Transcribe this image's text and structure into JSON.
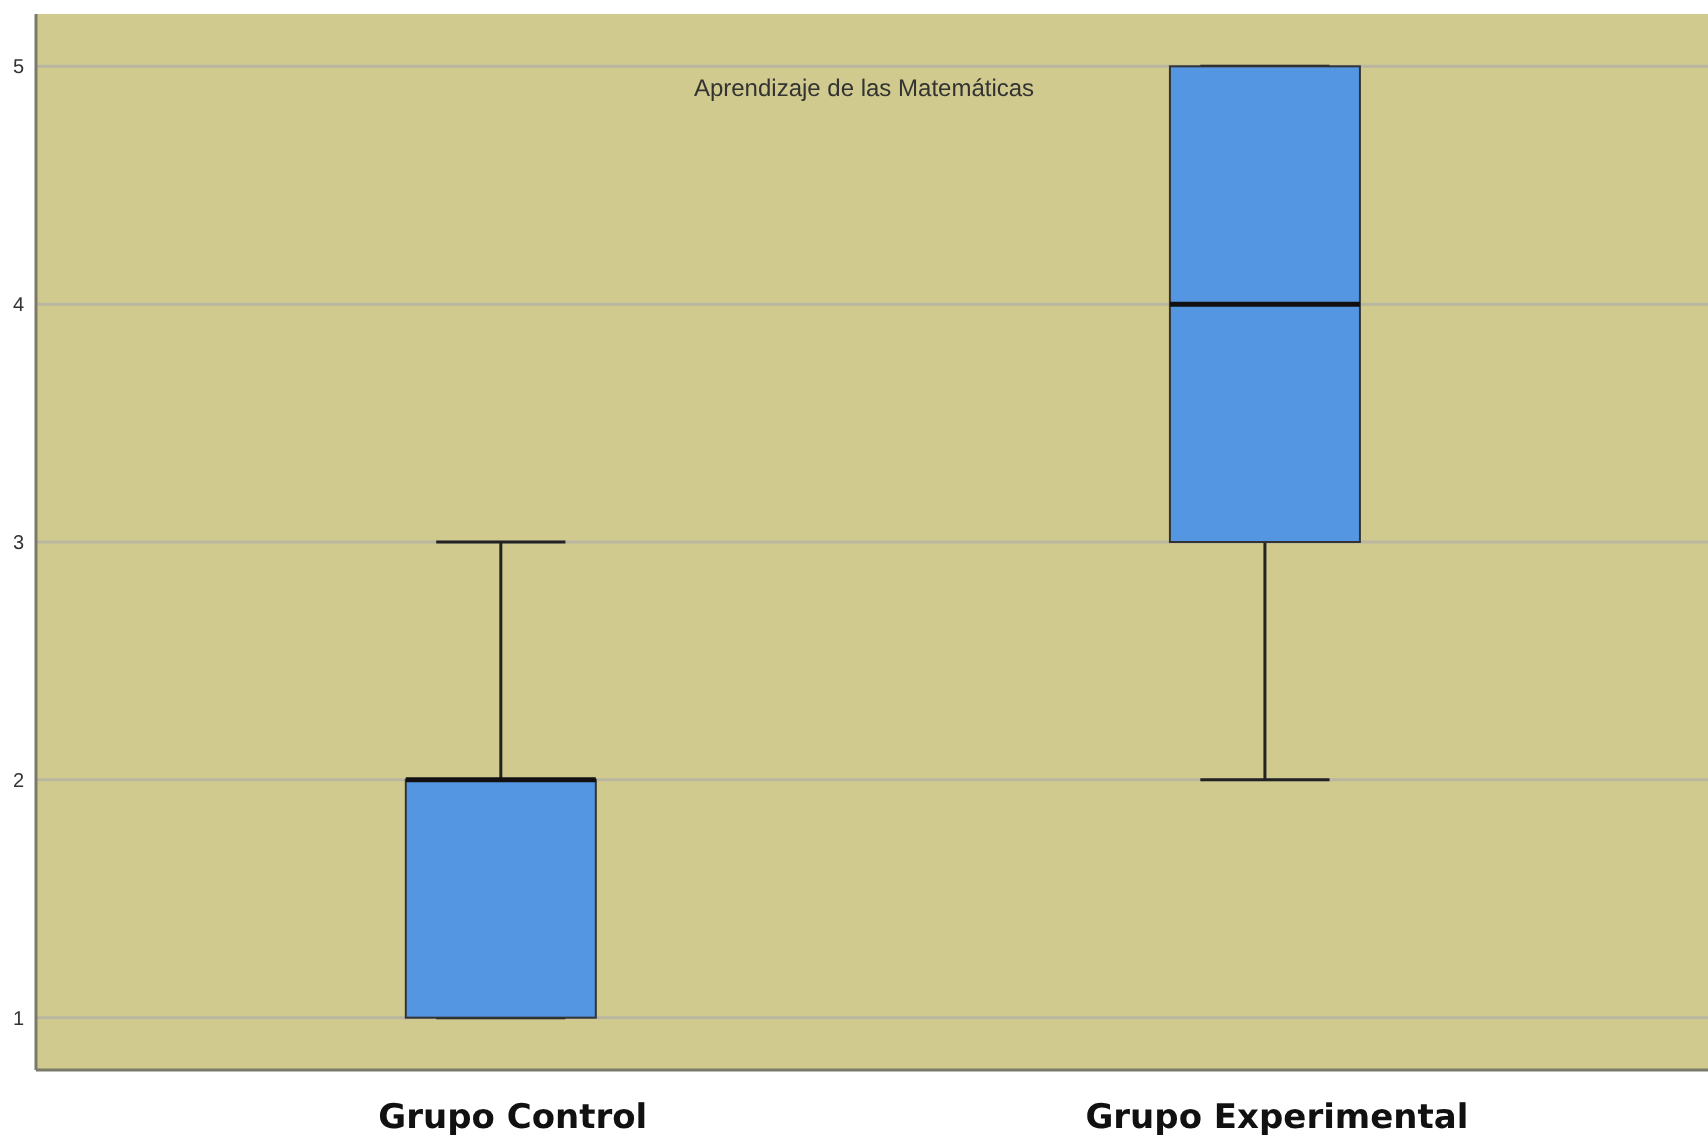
{
  "chart_data": {
    "type": "box",
    "title": "Aprendizaje de las Matemáticas",
    "categories": [
      "Grupo Control",
      "Grupo Experimental"
    ],
    "series": [
      {
        "color": "#5596e3",
        "boxes": [
          {
            "low": 1,
            "q1": 1,
            "median": 2,
            "q3": 2,
            "high": 3
          },
          {
            "low": 2,
            "q1": 3,
            "median": 4,
            "q3": 5,
            "high": 5
          }
        ]
      }
    ],
    "ylim": [
      0.78,
      5.22
    ],
    "yticks": [
      1,
      2,
      3,
      4,
      5
    ],
    "grid": "y"
  }
}
